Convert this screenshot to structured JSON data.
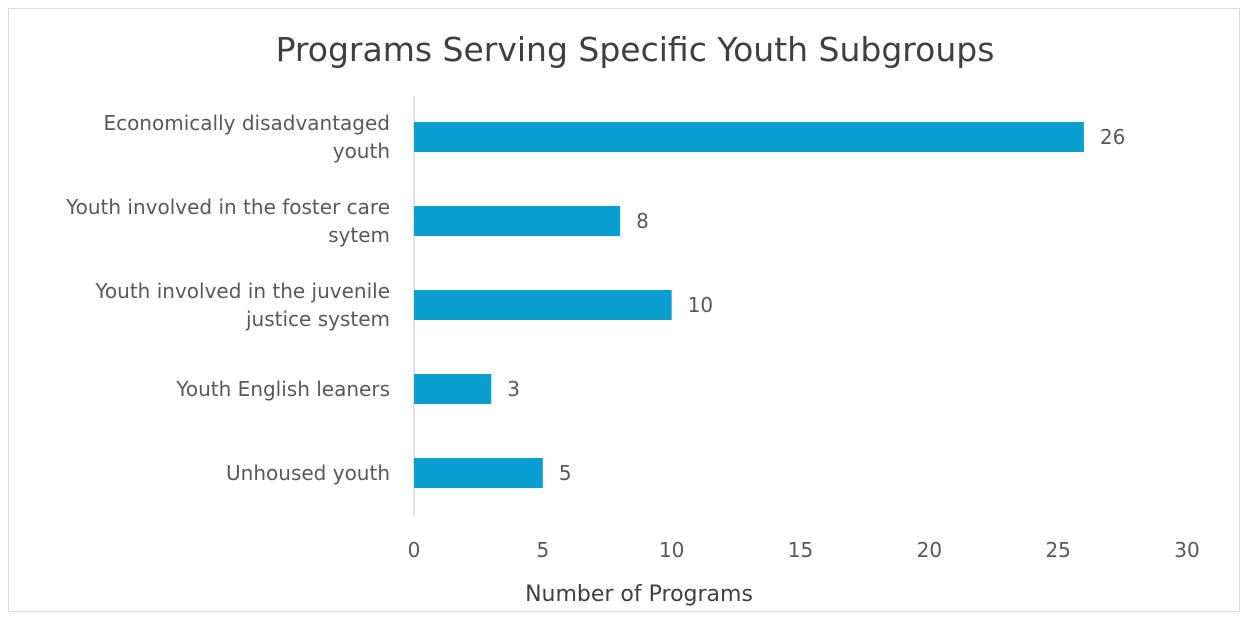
{
  "chart_data": {
    "type": "bar",
    "orientation": "horizontal",
    "title": "Programs Serving Specific Youth Subgroups",
    "xlabel": "Number of Programs",
    "ylabel": "",
    "categories": [
      [
        "Economically disadvantaged",
        "youth"
      ],
      [
        "Youth involved in the foster care",
        "sytem"
      ],
      [
        "Youth involved in the juvenile",
        "justice system"
      ],
      [
        "Youth English leaners"
      ],
      [
        "Unhoused youth"
      ]
    ],
    "values": [
      26,
      8,
      10,
      3,
      5
    ],
    "xlim": [
      0,
      30
    ],
    "xticks": [
      0,
      5,
      10,
      15,
      20,
      25,
      30
    ],
    "grid": false,
    "data_labels": true,
    "bar_color": "#0a9fd0"
  }
}
